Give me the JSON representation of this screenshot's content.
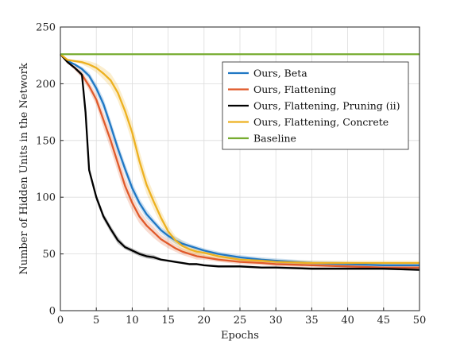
{
  "chart_data": {
    "type": "line",
    "title": "",
    "xlabel": "Epochs",
    "ylabel": "Number of Hidden Units in the Network",
    "xlim": [
      0,
      50
    ],
    "ylim": [
      0,
      250
    ],
    "xticks": [
      0,
      5,
      10,
      15,
      20,
      25,
      30,
      35,
      40,
      45,
      50
    ],
    "yticks": [
      0,
      50,
      100,
      150,
      200,
      250
    ],
    "grid": true,
    "legend_position": "top-right",
    "series": [
      {
        "name": "Ours, Beta",
        "color": "#1f77c4",
        "x": [
          0,
          1,
          2,
          3,
          4,
          5,
          6,
          7,
          8,
          9,
          10,
          11,
          12,
          13,
          14,
          15,
          16,
          17,
          18,
          19,
          20,
          22,
          25,
          28,
          30,
          35,
          40,
          45,
          50
        ],
        "y": [
          226,
          220,
          217,
          213,
          207,
          196,
          182,
          163,
          143,
          125,
          108,
          95,
          85,
          78,
          71,
          66,
          62,
          59,
          57,
          55,
          53,
          50,
          47,
          45,
          44,
          42,
          41,
          40,
          40
        ],
        "band": [
          0,
          1,
          1,
          2,
          3,
          4,
          5,
          5,
          5,
          5,
          5,
          4,
          4,
          3,
          3,
          3,
          3,
          3,
          2,
          2,
          2,
          2,
          2,
          2,
          2,
          2,
          2,
          2,
          2
        ]
      },
      {
        "name": "Ours, Flattening",
        "color": "#e05a2b",
        "x": [
          0,
          1,
          2,
          3,
          4,
          5,
          6,
          7,
          8,
          9,
          10,
          11,
          12,
          13,
          14,
          15,
          16,
          17,
          18,
          19,
          20,
          22,
          25,
          28,
          30,
          35,
          40,
          45,
          50
        ],
        "y": [
          226,
          219,
          214,
          208,
          198,
          186,
          168,
          150,
          130,
          110,
          95,
          83,
          75,
          69,
          63,
          59,
          55,
          52,
          50,
          48,
          47,
          45,
          43,
          42,
          41,
          40,
          39,
          38,
          38
        ],
        "band": [
          0,
          1,
          2,
          3,
          4,
          5,
          7,
          8,
          8,
          8,
          7,
          6,
          5,
          5,
          4,
          4,
          3,
          3,
          3,
          3,
          2,
          2,
          2,
          2,
          2,
          2,
          2,
          2,
          2
        ]
      },
      {
        "name": "Ours, Flattening, Pruning (ii)",
        "color": "#000000",
        "x": [
          0,
          1,
          2,
          3,
          3.5,
          4,
          5,
          6,
          7,
          8,
          9,
          10,
          11,
          12,
          13,
          14,
          15,
          16,
          17,
          18,
          19,
          20,
          22,
          25,
          28,
          30,
          35,
          40,
          45,
          50
        ],
        "y": [
          226,
          219,
          214,
          208,
          175,
          124,
          100,
          83,
          72,
          62,
          56,
          53,
          50,
          48,
          47,
          45,
          44,
          43,
          42,
          41,
          41,
          40,
          39,
          39,
          38,
          38,
          37,
          37,
          37,
          36
        ],
        "band": [
          0,
          1,
          1,
          2,
          3,
          3,
          3,
          3,
          3,
          3,
          2,
          2,
          2,
          2,
          2,
          1,
          1,
          1,
          1,
          1,
          1,
          1,
          1,
          1,
          1,
          1,
          1,
          1,
          1,
          1
        ]
      },
      {
        "name": "Ours, Flattening, Concrete",
        "color": "#edb120",
        "x": [
          0,
          1,
          2,
          3,
          4,
          5,
          6,
          7,
          8,
          9,
          10,
          11,
          12,
          13,
          14,
          15,
          16,
          17,
          18,
          19,
          20,
          22,
          25,
          28,
          30,
          35,
          40,
          45,
          50
        ],
        "y": [
          226,
          221,
          220,
          219,
          217,
          214,
          209,
          203,
          192,
          176,
          157,
          132,
          111,
          96,
          82,
          70,
          62,
          57,
          54,
          52,
          51,
          48,
          45,
          44,
          43,
          42,
          42,
          42,
          42
        ],
        "band": [
          0,
          1,
          1,
          2,
          3,
          4,
          5,
          6,
          7,
          8,
          9,
          9,
          8,
          7,
          6,
          5,
          4,
          4,
          3,
          3,
          3,
          3,
          2,
          2,
          2,
          2,
          2,
          2,
          2
        ]
      },
      {
        "name": "Baseline",
        "color": "#77ac30",
        "x": [
          0,
          50
        ],
        "y": [
          226,
          226
        ],
        "band": [
          0,
          0
        ]
      }
    ]
  }
}
